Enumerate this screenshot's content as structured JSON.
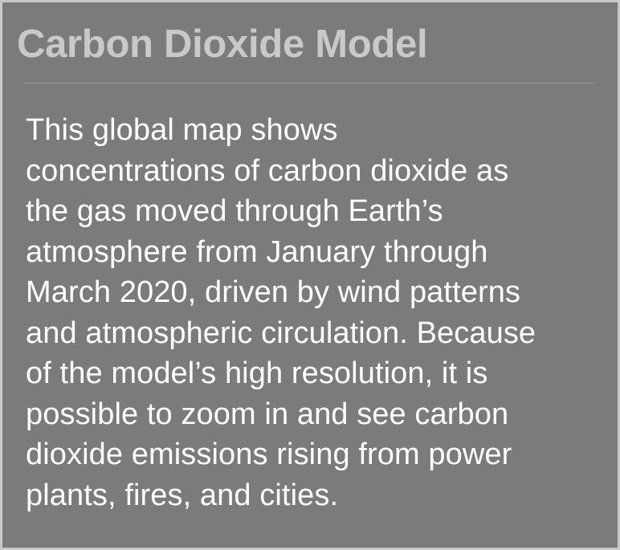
{
  "panel": {
    "title": "Carbon Dioxide Model",
    "body_lines": [
      "This global map shows",
      "concentrations of carbon dioxide as",
      "the gas moved through Earth’s",
      "atmosphere from January through",
      "March 2020, driven by wind patterns",
      "and atmospheric circulation. Because",
      "of the model’s high resolution, it is",
      "possible to zoom in and see carbon",
      "dioxide emissions rising from power",
      "plants, fires, and cities."
    ]
  },
  "colors": {
    "panel_background": "#7b7b7b",
    "title_text": "#c9c9c9",
    "body_text": "#ffffff",
    "divider": "#979797",
    "outer_frame": "#c8c8c8"
  }
}
